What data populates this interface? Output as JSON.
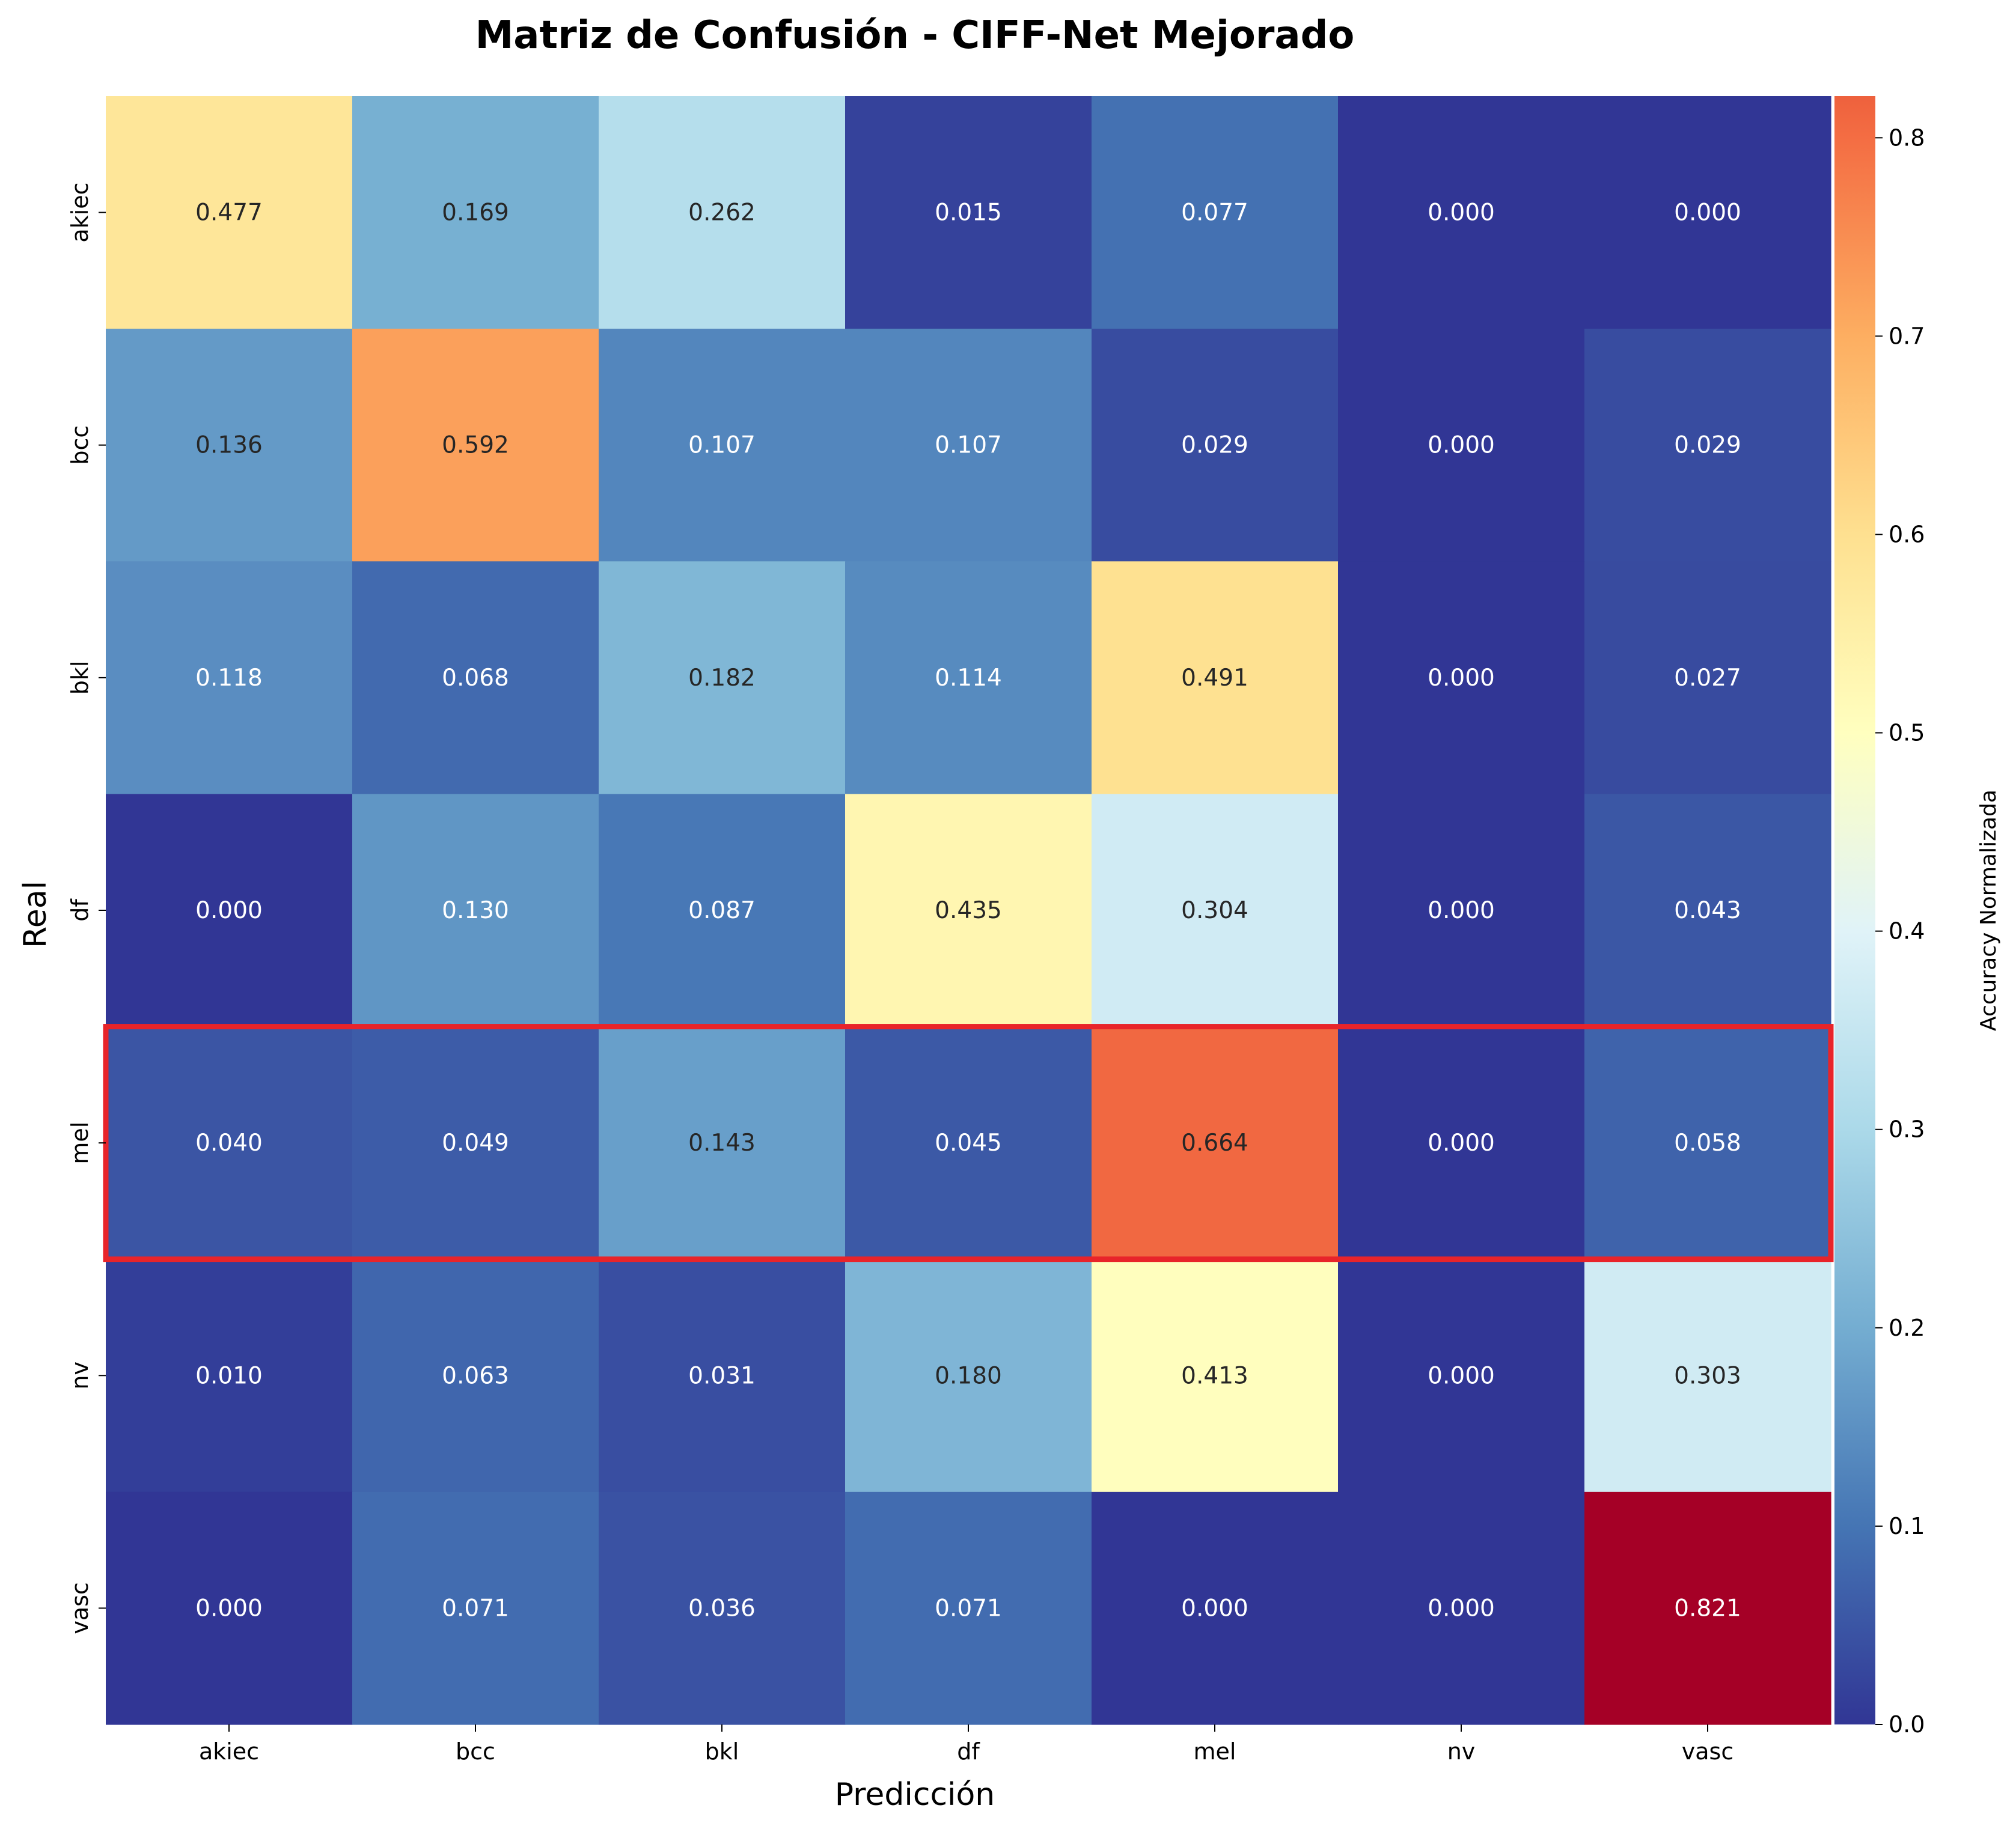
{
  "chart_data": {
    "type": "heatmap",
    "title": "Matriz de Confusión - CIFF-Net Mejorado",
    "xlabel": "Predicción",
    "ylabel": "Real",
    "x_categories": [
      "akiec",
      "bcc",
      "bkl",
      "df",
      "mel",
      "nv",
      "vasc"
    ],
    "y_categories": [
      "akiec",
      "bcc",
      "bkl",
      "df",
      "mel",
      "nv",
      "vasc"
    ],
    "values": [
      [
        0.477,
        0.169,
        0.262,
        0.015,
        0.077,
        0.0,
        0.0
      ],
      [
        0.136,
        0.592,
        0.107,
        0.107,
        0.029,
        0.0,
        0.029
      ],
      [
        0.118,
        0.068,
        0.182,
        0.114,
        0.491,
        0.0,
        0.027
      ],
      [
        0.0,
        0.13,
        0.087,
        0.435,
        0.304,
        0.0,
        0.043
      ],
      [
        0.04,
        0.049,
        0.143,
        0.045,
        0.664,
        0.0,
        0.058
      ],
      [
        0.01,
        0.063,
        0.031,
        0.18,
        0.413,
        0.0,
        0.303
      ],
      [
        0.0,
        0.071,
        0.036,
        0.071,
        0.0,
        0.0,
        0.821
      ]
    ],
    "value_format": "3 decimals",
    "colormap": "RdYlBu_r",
    "colorbar": {
      "label": "Accuracy Normalizada",
      "range": [
        0,
        0.821
      ],
      "ticks": [
        "0.0",
        "0.1",
        "0.2",
        "0.3",
        "0.4",
        "0.5",
        "0.6",
        "0.7",
        "0.8"
      ]
    },
    "highlighted_row": "mel",
    "highlight_color": "#e8242a"
  }
}
